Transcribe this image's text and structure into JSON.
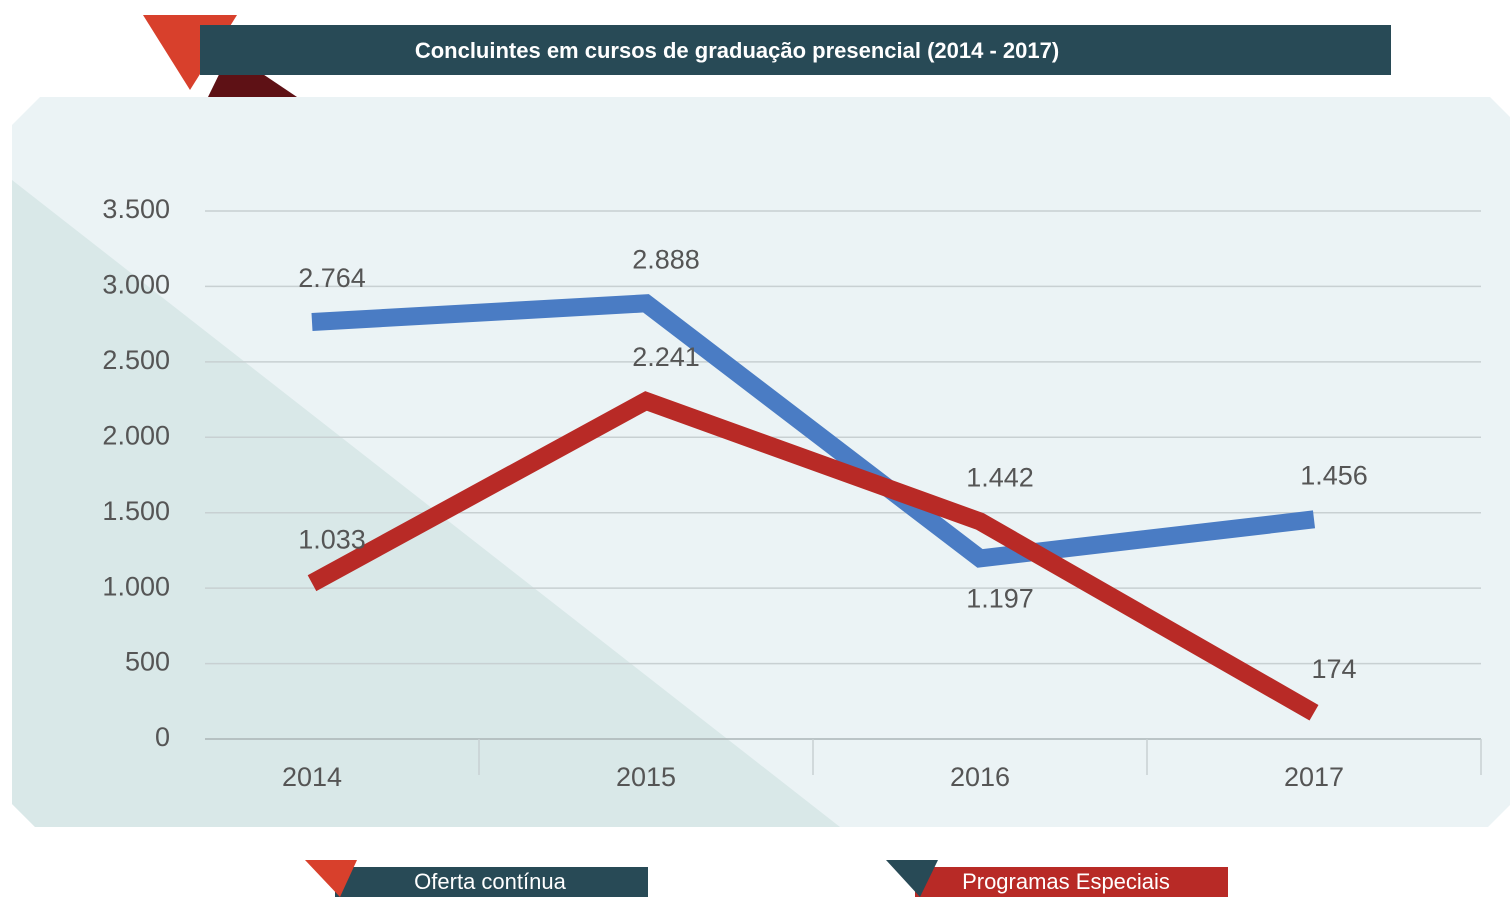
{
  "chart_data": {
    "type": "line",
    "title": "Concluintes em cursos de graduação presencial (2014 - 2017)",
    "categories": [
      "2014",
      "2015",
      "2016",
      "2017"
    ],
    "series": [
      {
        "name": "Oferta contínua",
        "color": "#4a7cc4",
        "values": [
          2764,
          2888,
          1197,
          1456
        ],
        "value_labels": [
          "2.764",
          "2.888",
          "1.197",
          "1.456"
        ]
      },
      {
        "name": "Programas Especiais",
        "color": "#b82a26",
        "values": [
          1033,
          2241,
          1442,
          174
        ],
        "value_labels": [
          "1.033",
          "2.241",
          "1.442",
          "174"
        ]
      }
    ],
    "ylim": [
      0,
      3500
    ],
    "yticks": [
      0,
      500,
      {
        "value": 1000,
        "label": "1.000"
      },
      {
        "value": 1500,
        "label": "1.500"
      },
      {
        "value": 2000,
        "label": "2.000"
      },
      {
        "value": 2500,
        "label": "2.500"
      },
      {
        "value": 3000,
        "label": "3.000"
      },
      {
        "value": 3500,
        "label": "3.500"
      }
    ],
    "grid": true
  }
}
